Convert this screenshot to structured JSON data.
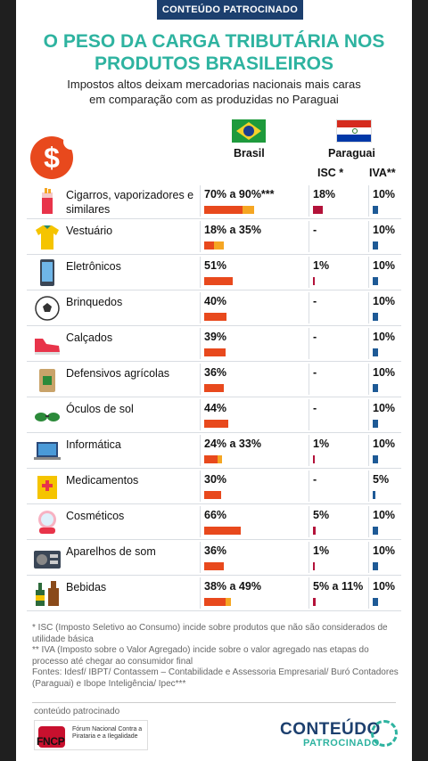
{
  "banner": "CONTEÚDO PATROCINADO",
  "title_line1": "O PESO DA CARGA TRIBUTÁRIA NOS",
  "title_line2": "PRODUTOS BRASILEIROS",
  "subtitle_line1": "Impostos altos deixam mercadorias nacionais mais caras",
  "subtitle_line2": "em comparação com as produzidas no Paraguai",
  "header": {
    "brasil": "Brasil",
    "paraguai": "Paraguai",
    "isc": "ISC *",
    "iva": "IVA**"
  },
  "dollar_symbol": "$",
  "colors": {
    "accent": "#2eb3a0",
    "navy": "#1c3f6e",
    "bar_red": "#e8491d",
    "bar_orange": "#f5a623",
    "isc_bar": "#b3123a",
    "iva_bar": "#1e5a96"
  },
  "rows": [
    {
      "icon": "cigarette-icon",
      "name": "Cigarros, vaporizadores e similares",
      "brasil": "70% a 90%***",
      "br_low": 70,
      "br_high": 90,
      "isc": "18%",
      "isc_pct": 18,
      "iva": "10%",
      "iva_pct": 10
    },
    {
      "icon": "tshirt-icon",
      "name": "Vestuário",
      "brasil": "18% a 35%",
      "br_low": 18,
      "br_high": 35,
      "isc": "-",
      "isc_pct": 0,
      "iva": "10%",
      "iva_pct": 10
    },
    {
      "icon": "smartphone-icon",
      "name": "Eletrônicos",
      "brasil": "51%",
      "br_low": 51,
      "br_high": 51,
      "isc": "1%",
      "isc_pct": 1,
      "iva": "10%",
      "iva_pct": 10
    },
    {
      "icon": "soccer-ball-icon",
      "name": "Brinquedos",
      "brasil": "40%",
      "br_low": 40,
      "br_high": 40,
      "isc": "-",
      "isc_pct": 0,
      "iva": "10%",
      "iva_pct": 10
    },
    {
      "icon": "sneaker-icon",
      "name": "Calçados",
      "brasil": "39%",
      "br_low": 39,
      "br_high": 39,
      "isc": "-",
      "isc_pct": 0,
      "iva": "10%",
      "iva_pct": 10
    },
    {
      "icon": "pesticide-bag-icon",
      "name": "Defensivos agrícolas",
      "brasil": "36%",
      "br_low": 36,
      "br_high": 36,
      "isc": "-",
      "isc_pct": 0,
      "iva": "10%",
      "iva_pct": 10
    },
    {
      "icon": "sunglasses-icon",
      "name": "Óculos de sol",
      "brasil": "44%",
      "br_low": 44,
      "br_high": 44,
      "isc": "-",
      "isc_pct": 0,
      "iva": "10%",
      "iva_pct": 10
    },
    {
      "icon": "laptop-icon",
      "name": "Informática",
      "brasil": "24% a 33%",
      "br_low": 24,
      "br_high": 33,
      "isc": "1%",
      "isc_pct": 1,
      "iva": "10%",
      "iva_pct": 10
    },
    {
      "icon": "medicine-box-icon",
      "name": "Medicamentos",
      "brasil": "30%",
      "br_low": 30,
      "br_high": 30,
      "isc": "-",
      "isc_pct": 0,
      "iva": "5%",
      "iva_pct": 5
    },
    {
      "icon": "compact-mirror-icon",
      "name": "Cosméticos",
      "brasil": "66%",
      "br_low": 66,
      "br_high": 66,
      "isc": "5%",
      "isc_pct": 5,
      "iva": "10%",
      "iva_pct": 10
    },
    {
      "icon": "radio-icon",
      "name": "Aparelhos de som",
      "brasil": "36%",
      "br_low": 36,
      "br_high": 36,
      "isc": "1%",
      "isc_pct": 1,
      "iva": "10%",
      "iva_pct": 10
    },
    {
      "icon": "bottles-icon",
      "name": "Bebidas",
      "brasil": "38% a 49%",
      "br_low": 38,
      "br_high": 49,
      "isc": "5% a 11%",
      "isc_pct": 5,
      "iva": "10%",
      "iva_pct": 10
    }
  ],
  "footnotes": {
    "isc": "* ISC (Imposto Seletivo ao Consumo) incide sobre produtos que não são considerados de utilidade básica",
    "iva": "** IVA  (Imposto sobre o Valor Agregado) incide sobre o valor agregado nas etapas do processo até chegar ao consumidor final",
    "sources": "Fontes: Idesf/ IBPT/ Contassem – Contabilidade e Assessoria Empresarial/ Buró Contadores (Paraguai) e Ibope Inteligência/ Ipec***"
  },
  "sponsor": {
    "label": "conteúdo patrocinado",
    "fncp_acronym": "FNCP",
    "fncp_name": "Fórum Nacional Contra a Pirataria e a Ilegalidade",
    "brand_main": "CONTEÚDO",
    "brand_sub": "PATROCINADO"
  }
}
